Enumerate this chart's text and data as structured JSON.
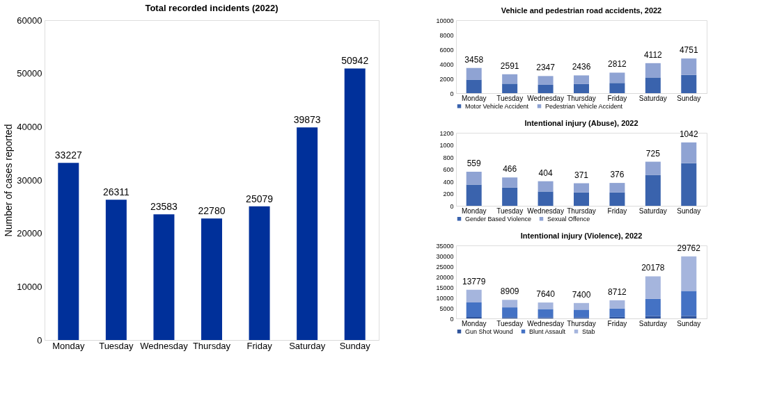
{
  "chart_data": [
    {
      "type": "bar",
      "title": "Total recorded incidents (2022)",
      "ylabel": "Number of cases reported",
      "categories": [
        "Monday",
        "Tuesday",
        "Wednesday",
        "Thursday",
        "Friday",
        "Saturday",
        "Sunday"
      ],
      "values": [
        33227,
        26311,
        23583,
        22780,
        25079,
        39873,
        50942
      ],
      "color": "#00309a",
      "ylim": [
        0,
        60000
      ],
      "yticks": [
        0,
        10000,
        20000,
        30000,
        40000,
        50000,
        60000
      ],
      "data_labels": true,
      "grid": false,
      "legend": false
    },
    {
      "type": "bar",
      "title": "Vehicle and pedestrian road accidents, 2022",
      "categories": [
        "Monday",
        "Tuesday",
        "Wednesday",
        "Thursday",
        "Friday",
        "Saturday",
        "Sunday"
      ],
      "stacked": true,
      "ylim": [
        0,
        10000
      ],
      "yticks": [
        0,
        2000,
        4000,
        6000,
        8000,
        10000
      ],
      "grid": false,
      "legend": "bottom",
      "series": [
        {
          "name": "Motor Vehicle Accident",
          "color": "#3a63ad",
          "values": [
            1850,
            1300,
            1150,
            1250,
            1400,
            2150,
            2500
          ]
        },
        {
          "name": "Pedestrian Vehicle Accident",
          "color": "#8fa3d3",
          "values": [
            1608,
            1291,
            1197,
            1186,
            1412,
            1962,
            2251
          ]
        }
      ],
      "totals": [
        "3458",
        "2591",
        "2347",
        "2436",
        "2812",
        "4112",
        "4751"
      ]
    },
    {
      "type": "bar",
      "title": "Intentional injury (Abuse), 2022",
      "categories": [
        "Monday",
        "Tuesday",
        "Wednesday",
        "Thursday",
        "Friday",
        "Saturday",
        "Sunday"
      ],
      "stacked": true,
      "ylim": [
        0,
        1200
      ],
      "yticks": [
        0,
        200,
        400,
        600,
        800,
        1000,
        1200
      ],
      "grid": false,
      "legend": "bottom",
      "series": [
        {
          "name": "Gender Based Violence",
          "color": "#3a63ad",
          "values": [
            350,
            300,
            235,
            220,
            220,
            510,
            700
          ]
        },
        {
          "name": "Sexual Offence",
          "color": "#8fa3d3",
          "values": [
            209,
            166,
            169,
            151,
            156,
            215,
            342
          ]
        }
      ],
      "totals": [
        "559",
        "466",
        "404",
        "371",
        "376",
        "725",
        "1042"
      ]
    },
    {
      "type": "bar",
      "title": "Intentional injury (Violence), 2022",
      "categories": [
        "Monday",
        "Tuesday",
        "Wednesday",
        "Thursday",
        "Friday",
        "Saturday",
        "Sunday"
      ],
      "stacked": true,
      "ylim": [
        0,
        35000
      ],
      "yticks": [
        0,
        5000,
        10000,
        15000,
        20000,
        25000,
        30000,
        35000
      ],
      "grid": false,
      "legend": "bottom",
      "series": [
        {
          "name": "Gun Shot Wound",
          "color": "#2f539b",
          "values": [
            700,
            550,
            500,
            500,
            700,
            1100,
            1200
          ]
        },
        {
          "name": "Blunt Assault",
          "color": "#4472c4",
          "values": [
            7000,
            4750,
            4000,
            3700,
            4000,
            8300,
            12000
          ]
        },
        {
          "name": "Stab",
          "color": "#a5b5dd",
          "values": [
            6079,
            3609,
            3140,
            3200,
            4012,
            10778,
            16562
          ]
        }
      ],
      "totals": [
        "13779",
        "8909",
        "7640",
        "7400",
        "8712",
        "20178",
        "29762"
      ]
    }
  ]
}
